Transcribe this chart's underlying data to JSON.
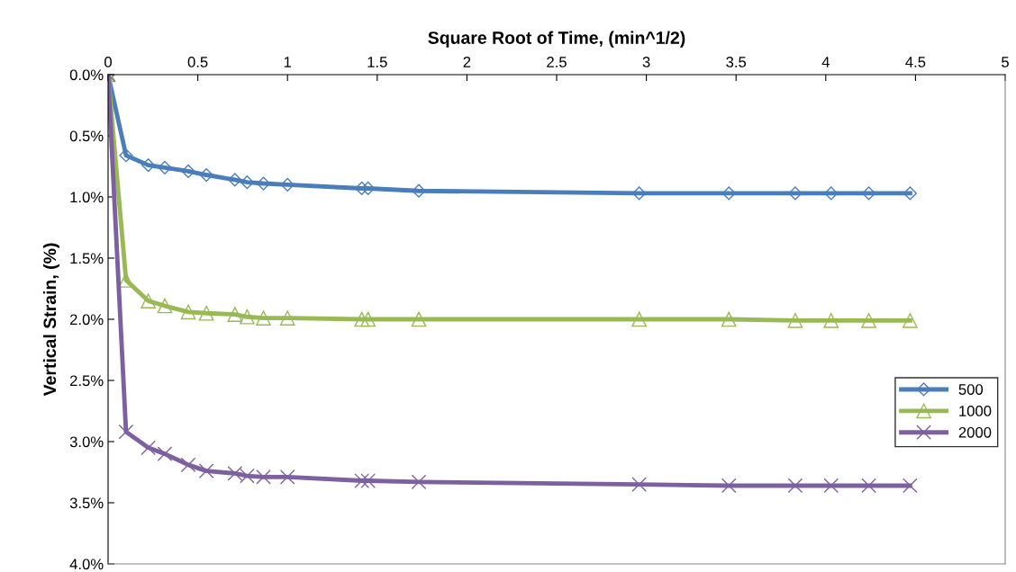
{
  "chart_data": {
    "type": "line",
    "xlabel": "Square Root of Time, (min^1/2)",
    "ylabel": "Vertical Strain, (%)",
    "xlim": [
      0,
      5
    ],
    "xticks": [
      0,
      0.5,
      1,
      1.5,
      2,
      2.5,
      3,
      3.5,
      4,
      4.5,
      5
    ],
    "ylim": [
      4,
      0
    ],
    "yticks": [
      {
        "value": 0,
        "label": "0.0%"
      },
      {
        "value": 0.5,
        "label": "0.5%"
      },
      {
        "value": 1,
        "label": "1.0%"
      },
      {
        "value": 1.5,
        "label": "1.5%"
      },
      {
        "value": 2,
        "label": "2.0%"
      },
      {
        "value": 2.5,
        "label": "2.5%"
      },
      {
        "value": 3,
        "label": "3.0%"
      },
      {
        "value": 3.5,
        "label": "3.5%"
      },
      {
        "value": 4,
        "label": "4.0%"
      }
    ],
    "x": [
      0,
      0.1,
      0.224,
      0.316,
      0.447,
      0.548,
      0.707,
      0.775,
      0.866,
      1.0,
      1.414,
      1.449,
      1.732,
      2.96,
      3.46,
      3.83,
      4.03,
      4.24,
      4.47
    ],
    "series": [
      {
        "name": "500",
        "color": "#4a7ebb",
        "marker": "diamond",
        "values": [
          0,
          0.66,
          0.74,
          0.76,
          0.79,
          0.82,
          0.86,
          0.88,
          0.89,
          0.9,
          0.93,
          0.93,
          0.95,
          0.97,
          0.97,
          0.97,
          0.97,
          0.97,
          0.97
        ]
      },
      {
        "name": "1000",
        "color": "#98b954",
        "marker": "triangle",
        "values": [
          0,
          1.68,
          1.85,
          1.89,
          1.94,
          1.95,
          1.96,
          1.98,
          1.99,
          1.99,
          2.0,
          2.0,
          2.0,
          2.0,
          2.0,
          2.01,
          2.01,
          2.01,
          2.01
        ]
      },
      {
        "name": "2000",
        "color": "#7d60a0",
        "marker": "cross",
        "values": [
          0,
          2.92,
          3.05,
          3.1,
          3.19,
          3.24,
          3.26,
          3.28,
          3.29,
          3.29,
          3.32,
          3.32,
          3.33,
          3.35,
          3.36,
          3.36,
          3.36,
          3.36,
          3.36
        ]
      }
    ],
    "grid": false,
    "legend": "right",
    "line_style": "solid"
  }
}
